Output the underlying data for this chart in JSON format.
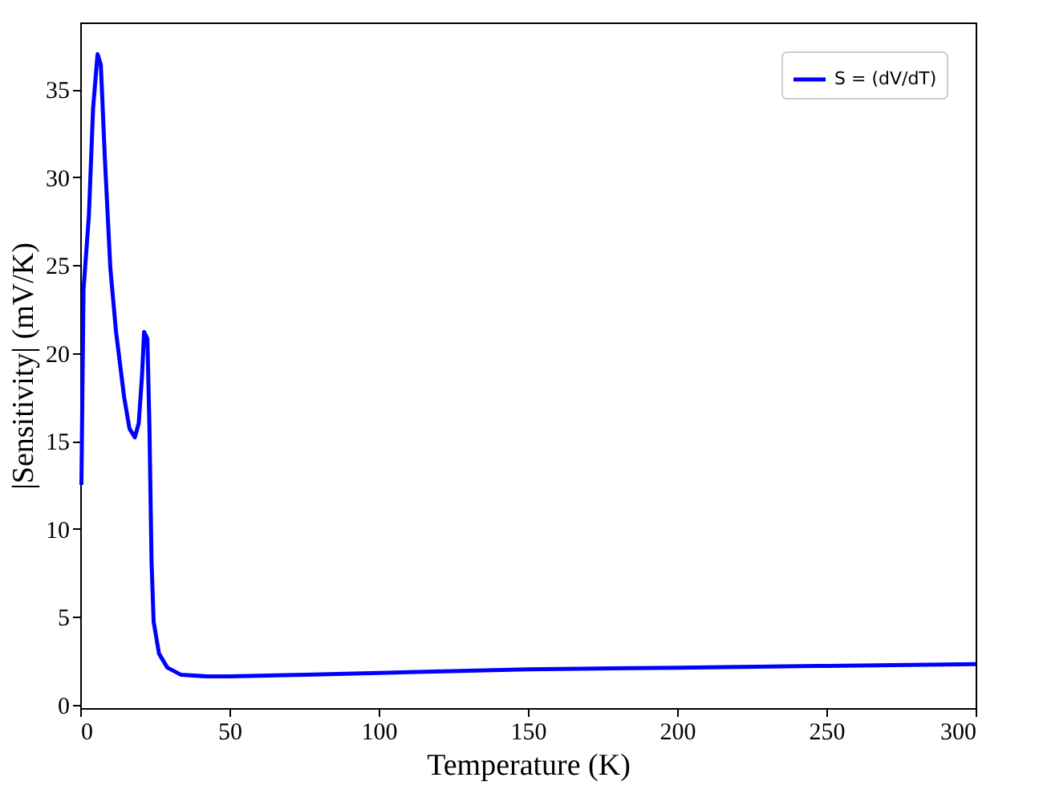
{
  "chart_data": {
    "type": "line",
    "xlabel": "Temperature (K)",
    "ylabel": "|Sensitivity| (mV/K)",
    "x": [
      0.4,
      1.1,
      2.9,
      4.3,
      5.8,
      6.9,
      8.3,
      10.1,
      12,
      14.7,
      16.5,
      18.3,
      19.6,
      20.7,
      21.4,
      22.5,
      23.2,
      23.9,
      24.6,
      26.4,
      29.2,
      33.7,
      42.8,
      50,
      75,
      100,
      150,
      200,
      250,
      300
    ],
    "series": [
      {
        "name": "S = (dV/dT)",
        "color": "#0000ff",
        "values": [
          12.5,
          23.6,
          27.8,
          33.9,
          37.0,
          36.4,
          30.9,
          24.8,
          21.2,
          17.5,
          15.7,
          15.2,
          16.0,
          18.7,
          21.2,
          20.8,
          15.7,
          8.1,
          4.7,
          2.9,
          2.1,
          1.7,
          1.6,
          1.6,
          1.7,
          1.8,
          2.0,
          2.1,
          2.2,
          2.3
        ]
      }
    ],
    "xlim": [
      0,
      300
    ],
    "xticks": [
      0,
      50,
      100,
      150,
      200,
      250,
      300
    ],
    "ylim": [
      -0.2,
      38.8
    ],
    "yticks": [
      0,
      5,
      10,
      15,
      20,
      25,
      30,
      35
    ],
    "grid": false,
    "legend": "top right",
    "marker": "none",
    "line_style": "solid"
  }
}
